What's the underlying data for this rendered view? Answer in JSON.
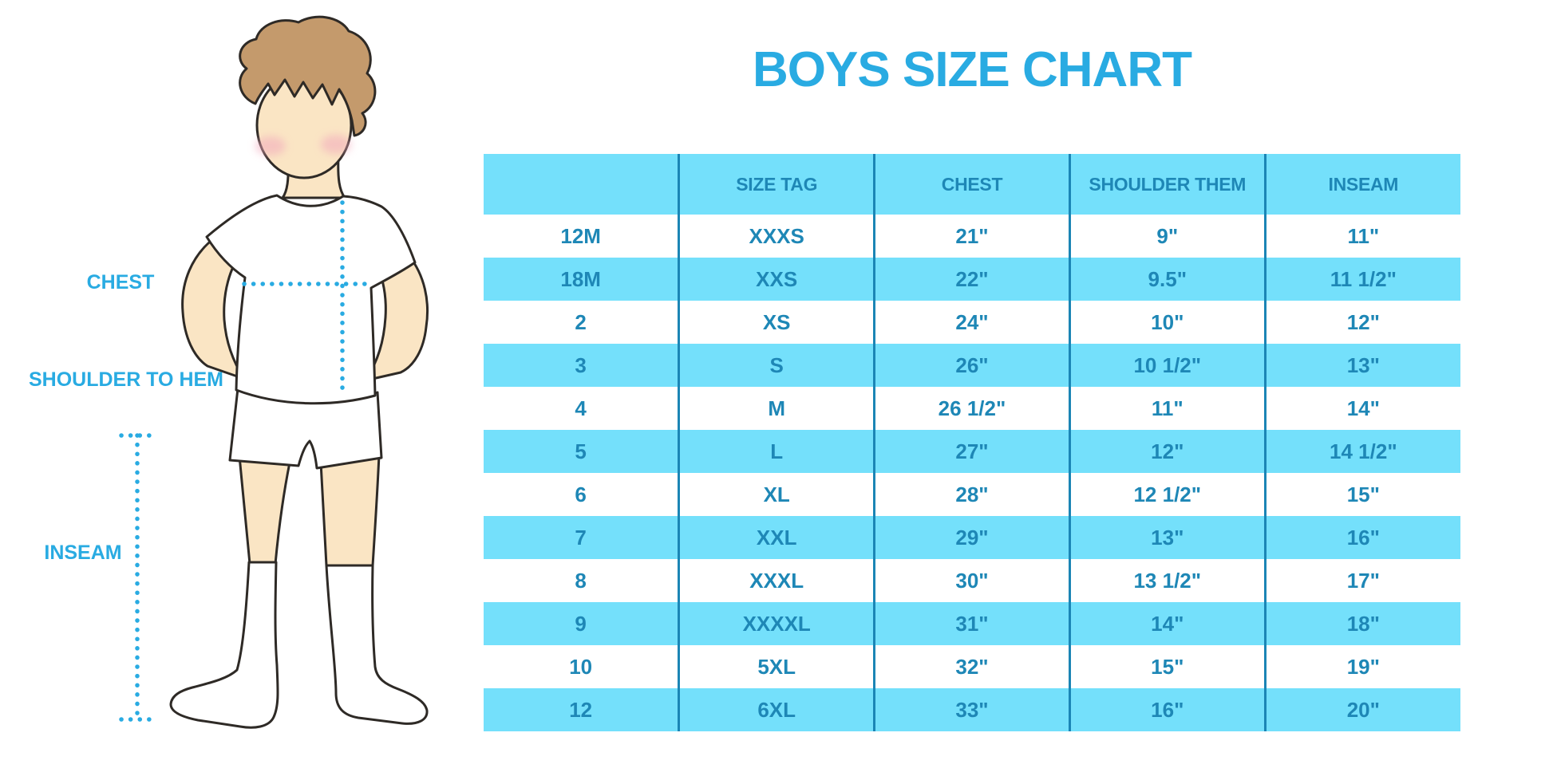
{
  "page": {
    "title": "BOYS SIZE CHART"
  },
  "figure": {
    "chest_label": "CHEST",
    "shoulder_label": "SHOULDER TO HEM",
    "inseam_label": "INSEAM"
  },
  "chart_data": {
    "type": "table",
    "title": "BOYS SIZE CHART",
    "columns": [
      "",
      "SIZE TAG",
      "CHEST",
      "SHOULDER THEM",
      "INSEAM"
    ],
    "rows": [
      [
        "12M",
        "XXXS",
        "21\"",
        "9\"",
        "11\""
      ],
      [
        "18M",
        "XXS",
        "22\"",
        "9.5\"",
        "11 1/2\""
      ],
      [
        "2",
        "XS",
        "24\"",
        "10\"",
        "12\""
      ],
      [
        "3",
        "S",
        "26\"",
        "10 1/2\"",
        "13\""
      ],
      [
        "4",
        "M",
        "26 1/2\"",
        "11\"",
        "14\""
      ],
      [
        "5",
        "L",
        "27\"",
        "12\"",
        "14 1/2\""
      ],
      [
        "6",
        "XL",
        "28\"",
        "12 1/2\"",
        "15\""
      ],
      [
        "7",
        "XXL",
        "29\"",
        "13\"",
        "16\""
      ],
      [
        "8",
        "XXXL",
        "30\"",
        "13 1/2\"",
        "17\""
      ],
      [
        "9",
        "XXXXL",
        "31\"",
        "14\"",
        "18\""
      ],
      [
        "10",
        "5XL",
        "32\"",
        "15\"",
        "19\""
      ],
      [
        "12",
        "6XL",
        "33\"",
        "16\"",
        "20\""
      ]
    ],
    "layout": {
      "row_striping": [
        "white",
        "blue"
      ],
      "grid": "vertical-dividers-only"
    }
  },
  "colors": {
    "accent": "#29ABE2",
    "stripe": "#74E0FB",
    "divider": "#1B85B5",
    "table_text": "#1E87B6",
    "outline": "#2E2A26",
    "skin": "#FAE5C4",
    "hair": "#C49A6C",
    "blush": "#F2A9BC",
    "background": "#FFFFFF"
  }
}
